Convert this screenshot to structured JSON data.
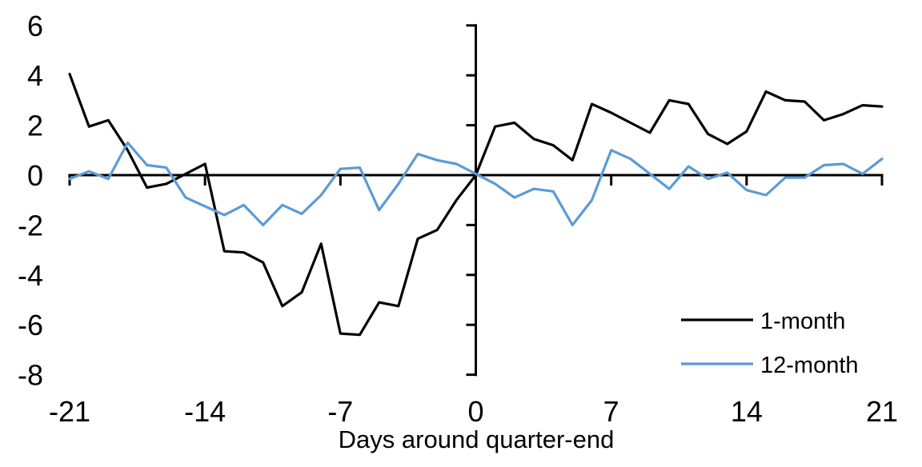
{
  "chart_data": {
    "type": "line",
    "title": "",
    "xlabel": "Days around quarter-end",
    "ylabel": "",
    "xlim": [
      -21,
      21
    ],
    "ylim": [
      -8,
      6
    ],
    "x_ticks": [
      -21,
      -14,
      -7,
      0,
      7,
      14,
      21
    ],
    "y_ticks": [
      6,
      4,
      2,
      0,
      -2,
      -4,
      -6,
      -8
    ],
    "grid": false,
    "legend_position": "inside-bottom-right",
    "x": [
      -21,
      -20,
      -19,
      -18,
      -17,
      -16,
      -15,
      -14,
      -13,
      -12,
      -11,
      -10,
      -9,
      -8,
      -7,
      -6,
      -5,
      -4,
      -3,
      -2,
      -1,
      0,
      1,
      2,
      3,
      4,
      5,
      6,
      7,
      8,
      9,
      10,
      11,
      12,
      13,
      14,
      15,
      16,
      17,
      18,
      19,
      20,
      21
    ],
    "series": [
      {
        "name": "1-month",
        "color": "#000000",
        "values": [
          4.05,
          1.95,
          2.2,
          1.0,
          -0.5,
          -0.35,
          0.05,
          0.45,
          -3.05,
          -3.1,
          -3.5,
          -5.25,
          -4.7,
          -2.75,
          -6.35,
          -6.4,
          -5.1,
          -5.25,
          -2.55,
          -2.2,
          -1.0,
          0.0,
          1.95,
          2.1,
          1.45,
          1.2,
          0.6,
          2.85,
          2.5,
          2.1,
          1.7,
          3.0,
          2.85,
          1.65,
          1.25,
          1.75,
          3.35,
          3.0,
          2.95,
          2.2,
          2.45,
          2.8,
          2.75
        ]
      },
      {
        "name": "12-month",
        "color": "#5B9BD5",
        "values": [
          -0.15,
          0.15,
          -0.15,
          1.3,
          0.4,
          0.3,
          -0.9,
          -1.25,
          -1.6,
          -1.2,
          -2.0,
          -1.2,
          -1.55,
          -0.8,
          0.25,
          0.3,
          -1.4,
          -0.35,
          0.85,
          0.6,
          0.45,
          0.05,
          -0.35,
          -0.9,
          -0.55,
          -0.65,
          -2.0,
          -1.0,
          1.0,
          0.65,
          0.05,
          -0.55,
          0.35,
          -0.15,
          0.1,
          -0.6,
          -0.8,
          -0.1,
          -0.1,
          0.4,
          0.45,
          0.05,
          0.65
        ]
      }
    ]
  },
  "colors": {
    "axis": "#000000",
    "background": "#FFFFFF",
    "series_1_month": "#000000",
    "series_12_month": "#5B9BD5"
  }
}
